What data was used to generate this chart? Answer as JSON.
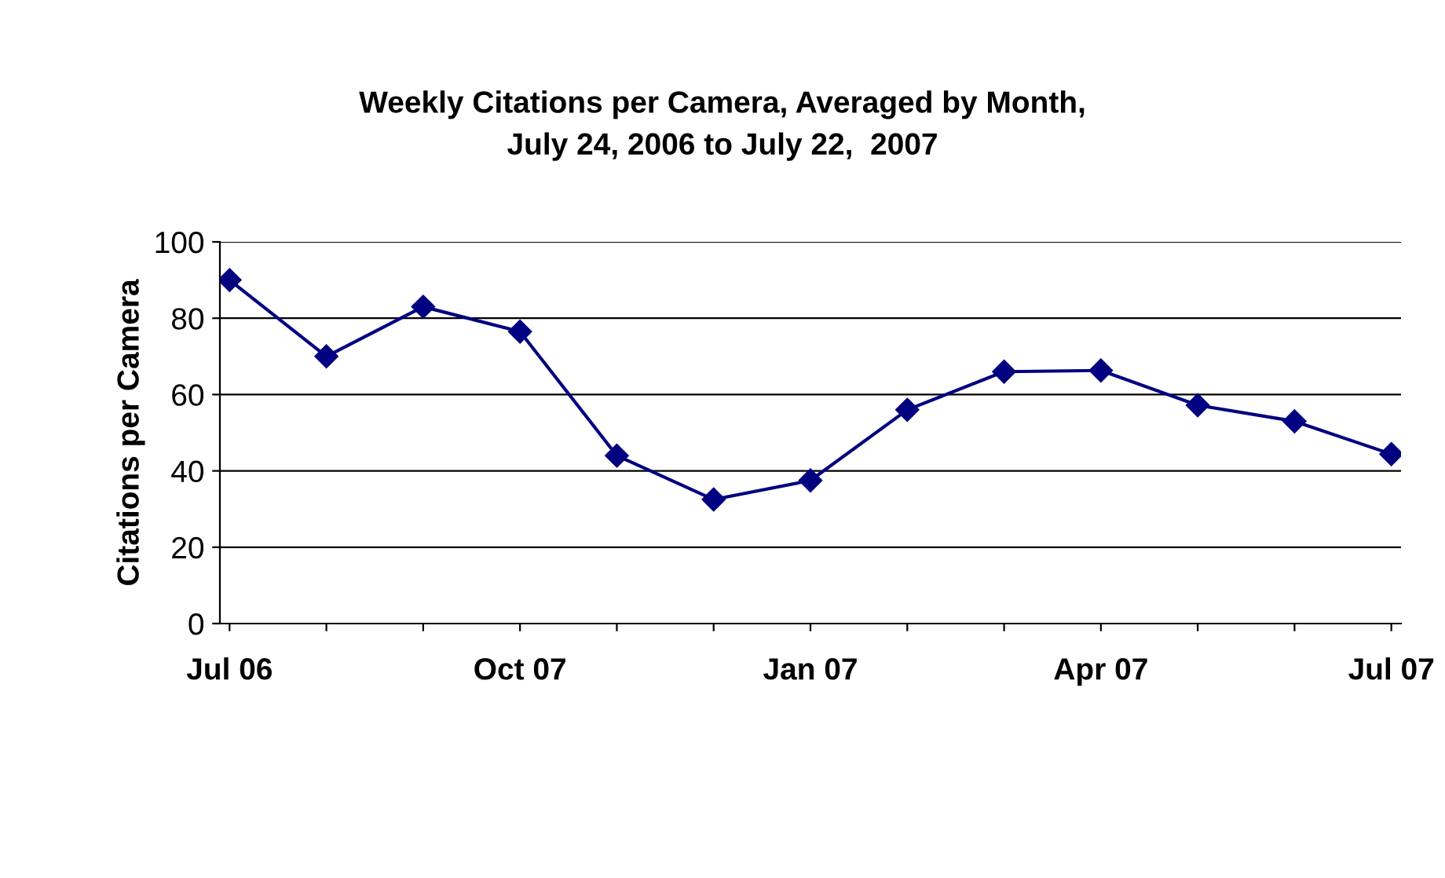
{
  "chart_data": {
    "type": "line",
    "title": "Weekly Citations per Camera, Averaged by Month,\nJuly 24, 2006 to July 22,  2007",
    "ylabel": "Citations per Camera",
    "categories": [
      "Jul 06",
      null,
      null,
      "Oct 07",
      null,
      null,
      "Jan 07",
      null,
      null,
      "Apr 07",
      null,
      null,
      "Jul 07"
    ],
    "series": [
      {
        "color": "#000080",
        "values": [
          90,
          70,
          83,
          76.5,
          44,
          32.5,
          37.5,
          56,
          66,
          66.3,
          57.2,
          53,
          44.4
        ]
      }
    ],
    "ylim": [
      0,
      100
    ],
    "yticks": [
      0,
      20,
      40,
      60,
      80,
      100
    ],
    "grid": "y",
    "marker": "diamond",
    "line_style": "solid"
  }
}
